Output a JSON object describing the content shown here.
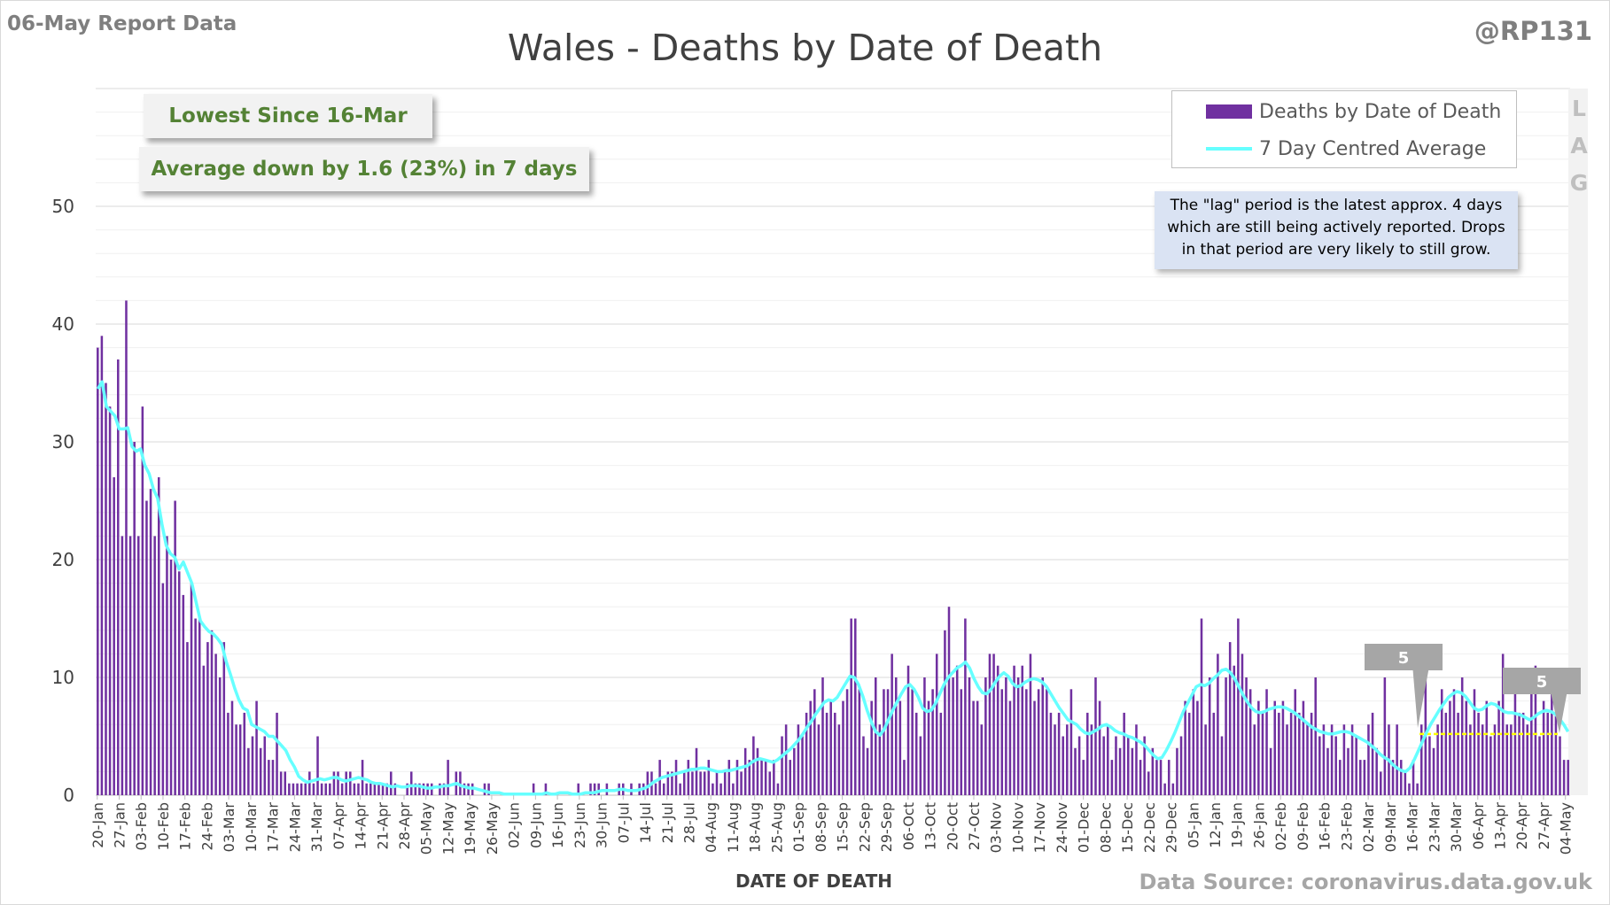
{
  "header": {
    "report_label": "06-May Report Data",
    "handle": "@RP131",
    "title": "Wales - Deaths by Date of Death"
  },
  "callouts": {
    "lowest": "Lowest Since 16-Mar",
    "average": "Average down by 1.6 (23%) in 7 days"
  },
  "legend": {
    "bar_label": "Deaths by Date of Death",
    "line_label": "7 Day Centred Average"
  },
  "note": {
    "line1": "The \"lag\" period is the latest approx. 4 days",
    "line2": "which are still being actively reported. Drops",
    "line3": "in that period are very likely to still grow."
  },
  "lag_letters": [
    "L",
    "A",
    "G"
  ],
  "markers": {
    "marker1": "5",
    "marker2": "5"
  },
  "footer": {
    "xlabel": "DATE OF DEATH",
    "source": "Data Source: coronavirus.data.gov.uk"
  },
  "colors": {
    "bar": "#7030a0",
    "average": "#66ffff",
    "callout_text": "#548235",
    "reference_line": "#ffff00"
  },
  "chart_data": {
    "type": "bar",
    "title": "Wales - Deaths by Date of Death",
    "xlabel": "DATE OF DEATH",
    "ylabel": "",
    "ylim": [
      0,
      60
    ],
    "yticks": [
      0,
      10,
      20,
      30,
      40,
      50
    ],
    "grid": true,
    "legend_position": "top-right",
    "x_start": "2020-01-20",
    "xtick_labels": [
      "20-Jan",
      "27-Jan",
      "03-Feb",
      "10-Feb",
      "17-Feb",
      "24-Feb",
      "03-Mar",
      "10-Mar",
      "17-Mar",
      "24-Mar",
      "31-Mar",
      "07-Apr",
      "14-Apr",
      "21-Apr",
      "28-Apr",
      "05-May",
      "12-May",
      "19-May",
      "26-May",
      "02-Jun",
      "09-Jun",
      "16-Jun",
      "23-Jun",
      "30-Jun",
      "07-Jul",
      "14-Jul",
      "21-Jul",
      "28-Jul",
      "04-Aug",
      "11-Aug",
      "18-Aug",
      "25-Aug",
      "01-Sep",
      "08-Sep",
      "15-Sep",
      "22-Sep",
      "29-Sep",
      "06-Oct",
      "13-Oct",
      "20-Oct",
      "27-Oct",
      "03-Nov",
      "10-Nov",
      "17-Nov",
      "24-Nov",
      "01-Dec",
      "08-Dec",
      "15-Dec",
      "22-Dec",
      "29-Dec",
      "05-Jan",
      "12-Jan",
      "19-Jan",
      "26-Jan",
      "02-Feb",
      "09-Feb",
      "16-Feb",
      "23-Feb",
      "02-Mar",
      "09-Mar",
      "16-Mar",
      "23-Mar",
      "30-Mar",
      "06-Apr",
      "13-Apr",
      "20-Apr",
      "27-Apr",
      "04-May"
    ],
    "series": [
      {
        "name": "Deaths by Date of Death",
        "values": [
          38,
          39,
          35,
          33,
          27,
          37,
          22,
          42,
          22,
          30,
          22,
          33,
          25,
          26,
          22,
          27,
          18,
          22,
          20,
          25,
          19,
          17,
          13,
          18,
          15,
          15,
          11,
          13,
          14,
          12,
          10,
          13,
          7,
          8,
          6,
          6,
          7,
          4,
          5,
          8,
          4,
          5,
          3,
          3,
          7,
          2,
          2,
          1,
          1,
          1,
          1,
          1,
          2,
          1,
          5,
          1,
          1,
          1,
          2,
          2,
          1,
          2,
          2,
          1,
          1,
          3,
          1,
          1,
          1,
          1,
          1,
          1,
          2,
          1,
          0,
          0,
          1,
          2,
          1,
          1,
          1,
          1,
          1,
          0,
          1,
          1,
          3,
          0,
          2,
          2,
          1,
          1,
          1,
          0,
          0,
          1,
          1,
          0,
          0,
          0,
          0,
          0,
          0,
          0,
          0,
          0,
          0,
          1,
          0,
          0,
          1,
          0,
          0,
          0,
          0,
          0,
          0,
          0,
          1,
          0,
          0,
          1,
          1,
          1,
          0,
          1,
          0,
          0,
          1,
          1,
          0,
          1,
          0,
          1,
          1,
          2,
          2,
          1,
          3,
          1,
          2,
          2,
          3,
          1,
          2,
          3,
          2,
          4,
          2,
          2,
          3,
          1,
          2,
          1,
          2,
          3,
          1,
          3,
          2,
          4,
          3,
          5,
          4,
          3,
          3,
          2,
          3,
          1,
          5,
          6,
          3,
          4,
          6,
          5,
          7,
          8,
          9,
          6,
          10,
          7,
          8,
          7,
          6,
          8,
          9,
          15,
          15,
          9,
          5,
          4,
          8,
          10,
          6,
          9,
          9,
          12,
          10,
          8,
          3,
          11,
          9,
          7,
          5,
          10,
          8,
          9,
          12,
          7,
          14,
          16,
          10,
          11,
          9,
          15,
          10,
          8,
          8,
          6,
          10,
          12,
          12,
          11,
          9,
          10,
          8,
          11,
          10,
          11,
          9,
          12,
          8,
          9,
          10,
          9,
          7,
          6,
          7,
          5,
          6,
          9,
          4,
          5,
          3,
          7,
          6,
          10,
          8,
          5,
          6,
          3,
          5,
          4,
          7,
          5,
          4,
          6,
          3,
          5,
          2,
          4,
          3,
          3,
          1,
          3,
          1,
          4,
          5,
          8,
          7,
          9,
          8,
          15,
          6,
          10,
          7,
          12,
          5,
          10,
          13,
          11,
          15,
          12,
          10,
          9,
          6,
          8,
          7,
          9,
          4,
          8,
          7,
          8,
          6,
          7,
          9,
          7,
          8,
          6,
          7,
          10,
          5,
          6,
          4,
          6,
          5,
          3,
          6,
          4,
          6,
          5,
          3,
          3,
          6,
          7,
          4,
          2,
          10,
          6,
          3,
          6,
          3,
          2,
          1,
          3,
          1,
          6,
          10,
          5,
          4,
          6,
          9,
          7,
          8,
          9,
          7,
          10,
          8,
          6,
          9,
          7,
          6,
          8,
          5,
          6,
          8,
          12,
          6,
          6,
          9,
          7,
          7,
          6,
          9,
          11,
          5,
          8,
          7,
          9,
          7,
          5,
          3,
          3
        ]
      },
      {
        "name": "7 Day Centred Average",
        "values": [
          34.5,
          35.1,
          33.0,
          32.6,
          32.2,
          31.1,
          31.1,
          31.2,
          29.6,
          29.2,
          29.4,
          28.0,
          27.3,
          26.0,
          25.2,
          23.0,
          21.2,
          20.5,
          20.2,
          19.2,
          19.8,
          18.9,
          18.0,
          16.4,
          14.8,
          14.3,
          13.9,
          13.7,
          13.3,
          12.8,
          11.4,
          10.3,
          9.1,
          8.1,
          7.4,
          7.2,
          6.0,
          5.8,
          5.6,
          5.4,
          5.0,
          5.0,
          4.6,
          4.2,
          3.8,
          3.0,
          2.4,
          1.6,
          1.3,
          1.1,
          1.2,
          1.3,
          1.4,
          1.3,
          1.4,
          1.5,
          1.5,
          1.3,
          1.2,
          1.3,
          1.4,
          1.5,
          1.4,
          1.3,
          1.1,
          1.0,
          1.0,
          0.9,
          0.8,
          0.7,
          0.8,
          0.7,
          0.7,
          0.8,
          0.8,
          0.8,
          0.7,
          0.6,
          0.6,
          0.7,
          0.7,
          0.8,
          0.8,
          0.9,
          1.0,
          0.8,
          0.7,
          0.6,
          0.6,
          0.5,
          0.4,
          0.3,
          0.2,
          0.2,
          0.2,
          0.1,
          0.1,
          0.1,
          0.1,
          0.1,
          0.1,
          0.1,
          0.1,
          0.1,
          0.1,
          0.2,
          0.1,
          0.1,
          0.2,
          0.2,
          0.2,
          0.1,
          0.1,
          0.1,
          0.2,
          0.2,
          0.2,
          0.3,
          0.4,
          0.4,
          0.4,
          0.4,
          0.5,
          0.5,
          0.4,
          0.4,
          0.4,
          0.5,
          0.6,
          0.8,
          1.1,
          1.3,
          1.5,
          1.6,
          1.7,
          1.8,
          1.9,
          2.0,
          2.1,
          2.2,
          2.2,
          2.3,
          2.3,
          2.2,
          2.1,
          2.0,
          2.0,
          2.1,
          2.1,
          2.2,
          2.3,
          2.4,
          2.5,
          2.8,
          3.0,
          3.1,
          3.0,
          2.9,
          2.8,
          3.0,
          3.3,
          3.6,
          3.9,
          4.3,
          4.7,
          5.2,
          5.8,
          6.3,
          6.9,
          7.4,
          7.9,
          8.1,
          8.0,
          8.3,
          8.9,
          9.5,
          10.1,
          10.0,
          9.4,
          8.4,
          7.2,
          6.2,
          5.4,
          5.1,
          5.6,
          6.4,
          7.2,
          7.9,
          8.6,
          9.2,
          9.4,
          9.0,
          8.3,
          7.4,
          7.1,
          7.2,
          7.8,
          8.6,
          9.4,
          10.0,
          10.4,
          10.8,
          11.0,
          11.3,
          10.8,
          9.9,
          9.2,
          8.7,
          8.6,
          9.0,
          9.6,
          10.1,
          10.4,
          10.1,
          9.5,
          9.2,
          9.3,
          9.6,
          9.8,
          9.9,
          9.8,
          9.6,
          9.2,
          8.6,
          8.0,
          7.4,
          6.9,
          6.4,
          6.2,
          6.0,
          5.6,
          5.3,
          5.2,
          5.4,
          5.6,
          5.9,
          6.0,
          5.8,
          5.5,
          5.3,
          5.2,
          5.0,
          4.9,
          4.7,
          4.5,
          4.2,
          3.8,
          3.4,
          3.1,
          3.2,
          3.8,
          4.5,
          5.3,
          6.2,
          7.1,
          7.8,
          8.5,
          9.2,
          9.4,
          9.3,
          9.5,
          9.9,
          10.2,
          10.6,
          10.7,
          10.4,
          9.9,
          9.2,
          8.5,
          7.9,
          7.4,
          7.1,
          7.0,
          7.1,
          7.3,
          7.4,
          7.5,
          7.5,
          7.4,
          7.2,
          7.0,
          6.7,
          6.4,
          6.1,
          5.8,
          5.6,
          5.4,
          5.3,
          5.2,
          5.2,
          5.3,
          5.4,
          5.4,
          5.3,
          5.1,
          4.9,
          4.7,
          4.5,
          4.2,
          3.9,
          3.5,
          3.2,
          3.0,
          2.6,
          2.3,
          2.1,
          2.0,
          2.3,
          3.0,
          3.8,
          4.6,
          5.4,
          6.1,
          6.7,
          7.3,
          7.8,
          8.3,
          8.6,
          8.8,
          8.7,
          8.4,
          7.9,
          7.4,
          7.2,
          7.3,
          7.6,
          7.8,
          7.7,
          7.4,
          7.1,
          7.0,
          7.0,
          6.9,
          6.8,
          6.6,
          6.4,
          6.6,
          6.9,
          7.1,
          7.2,
          7.1,
          6.9,
          6.5,
          6.0,
          5.4
        ]
      }
    ],
    "reference_line": {
      "value": 5.2,
      "label": "5"
    },
    "lag_days": 4
  }
}
